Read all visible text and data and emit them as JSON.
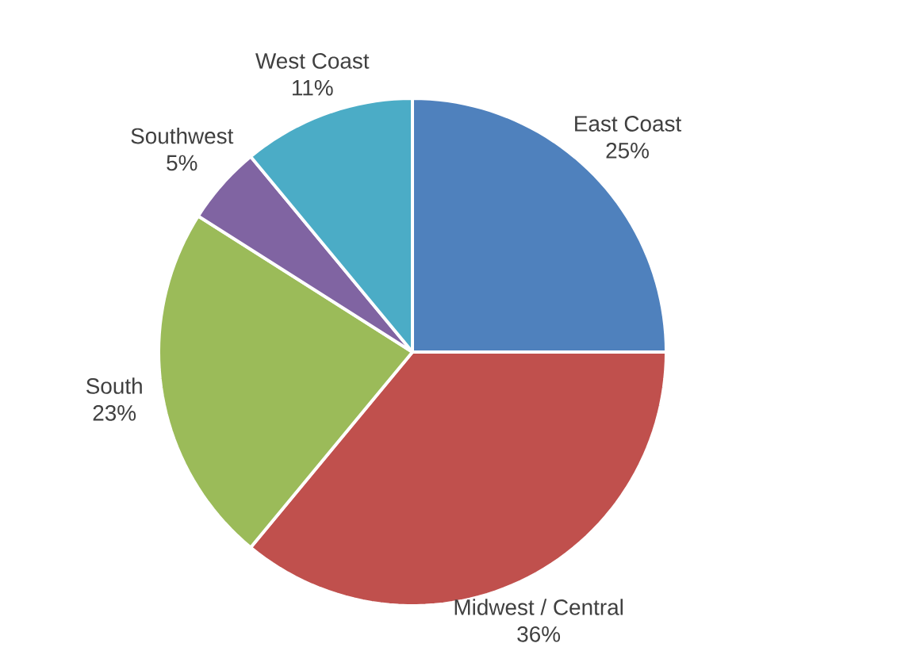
{
  "chart_data": {
    "type": "pie",
    "categories": [
      "East Coast",
      "Midwest / Central",
      "South",
      "Southwest",
      "West Coast"
    ],
    "values": [
      25,
      36,
      23,
      5,
      11
    ],
    "value_labels": [
      "25%",
      "36%",
      "23%",
      "5%",
      "11%"
    ],
    "colors": [
      "#4f81bd",
      "#c0504d",
      "#9bbb59",
      "#8064a2",
      "#4bacc6"
    ],
    "data_labels": true
  }
}
